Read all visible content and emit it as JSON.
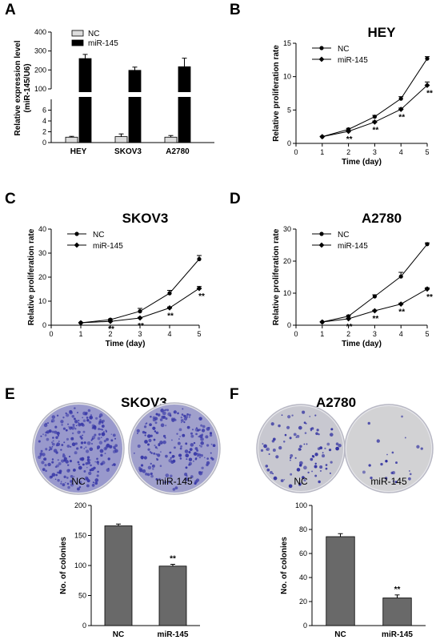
{
  "figure": {
    "panel_labels": [
      "A",
      "B",
      "C",
      "D",
      "E",
      "F"
    ]
  },
  "chart_data": [
    {
      "panel": "A",
      "type": "bar",
      "ylabel_lines": [
        "Relative expression level",
        "(miR-145/U6)"
      ],
      "ylim_lower": [
        0,
        8
      ],
      "ylim_upper": [
        100,
        400
      ],
      "yticks_lower": [
        0,
        2,
        4,
        6
      ],
      "yticks_upper": [
        100,
        200,
        300,
        400
      ],
      "categories": [
        "HEY",
        "SKOV3",
        "A2780"
      ],
      "series": [
        {
          "name": "NC",
          "color": "#dddddd",
          "values": [
            1,
            1.1,
            1
          ],
          "errors": [
            0.15,
            0.5,
            0.3
          ]
        },
        {
          "name": "miR-145",
          "color": "#000000",
          "values": [
            260,
            198,
            217
          ],
          "errors": [
            22,
            17,
            45
          ]
        }
      ],
      "legend": "top-left"
    },
    {
      "panel": "B",
      "type": "line",
      "title": "HEY",
      "xlabel": "Time (day)",
      "ylabel": "Relative proliferation rate",
      "xlim": [
        0,
        5
      ],
      "xticks": [
        0,
        1,
        2,
        3,
        4,
        5
      ],
      "ylim": [
        0,
        15
      ],
      "yticks": [
        0,
        5,
        10,
        15
      ],
      "series": [
        {
          "name": "NC",
          "marker": "circle",
          "values": [
            1,
            2.1,
            4.0,
            6.7,
            12.7
          ],
          "errors": [
            0.05,
            0.15,
            0.2,
            0.3,
            0.3
          ]
        },
        {
          "name": "miR-145",
          "marker": "diamond",
          "values": [
            1,
            1.8,
            3.2,
            5.1,
            8.7
          ],
          "errors": [
            0.05,
            0.1,
            0.15,
            0.2,
            0.5
          ]
        }
      ],
      "significance": [
        {
          "x": 2,
          "label": "**"
        },
        {
          "x": 3,
          "label": "**"
        },
        {
          "x": 4,
          "label": "**"
        },
        {
          "x": 5,
          "label": "**"
        }
      ],
      "legend": "top-left"
    },
    {
      "panel": "C",
      "type": "line",
      "title": "SKOV3",
      "xlabel": "Time (day)",
      "ylabel": "Relative proliferation rate",
      "xlim": [
        0,
        5
      ],
      "xticks": [
        0,
        1,
        2,
        3,
        4,
        5
      ],
      "ylim": [
        0,
        40
      ],
      "yticks": [
        0,
        10,
        20,
        30,
        40
      ],
      "series": [
        {
          "name": "NC",
          "marker": "circle",
          "values": [
            1,
            2.3,
            5.8,
            13.3,
            27.5
          ],
          "errors": [
            0.1,
            0.3,
            1.2,
            1.2,
            1.5
          ]
        },
        {
          "name": "miR-145",
          "marker": "diamond",
          "values": [
            1,
            1.6,
            3.0,
            7.2,
            15.3
          ],
          "errors": [
            0.1,
            0.2,
            0.3,
            0.4,
            0.8
          ]
        }
      ],
      "significance": [
        {
          "x": 2,
          "label": "**"
        },
        {
          "x": 3,
          "label": "**"
        },
        {
          "x": 4,
          "label": "**"
        },
        {
          "x": 5,
          "label": "**"
        }
      ],
      "legend": "top-left"
    },
    {
      "panel": "D",
      "type": "line",
      "title": "A2780",
      "xlabel": "Time (day)",
      "ylabel": "Relative proliferation rate",
      "xlim": [
        0,
        5
      ],
      "xticks": [
        0,
        1,
        2,
        3,
        4,
        5
      ],
      "ylim": [
        0,
        30
      ],
      "yticks": [
        0,
        10,
        20,
        30
      ],
      "series": [
        {
          "name": "NC",
          "marker": "circle",
          "values": [
            1,
            2.8,
            9.0,
            15.2,
            25.3
          ],
          "errors": [
            0.1,
            0.3,
            0.5,
            1.3,
            0.4
          ]
        },
        {
          "name": "miR-145",
          "marker": "diamond",
          "values": [
            1,
            2.0,
            4.5,
            6.6,
            11.3
          ],
          "errors": [
            0.1,
            0.2,
            0.2,
            0.3,
            0.4
          ]
        }
      ],
      "significance": [
        {
          "x": 2,
          "label": "**"
        },
        {
          "x": 3,
          "label": "**"
        },
        {
          "x": 4,
          "label": "**"
        },
        {
          "x": 5,
          "label": "**"
        }
      ],
      "legend": "top-left"
    },
    {
      "panel": "E",
      "type": "bar",
      "title": "SKOV3",
      "ylabel": "No. of colonies",
      "ylim": [
        0,
        200
      ],
      "yticks": [
        0,
        50,
        100,
        150,
        200
      ],
      "categories": [
        "NC",
        "miR-145"
      ],
      "values": [
        166,
        99
      ],
      "errors": [
        3,
        3
      ],
      "significance": [
        {
          "category": "miR-145",
          "label": "**"
        }
      ],
      "bar_color": "#696969"
    },
    {
      "panel": "F",
      "type": "bar",
      "title": "A2780",
      "ylabel": "No. of colonies",
      "ylim": [
        0,
        100
      ],
      "yticks": [
        0,
        20,
        40,
        60,
        80,
        100
      ],
      "categories": [
        "NC",
        "miR-145"
      ],
      "values": [
        74,
        23
      ],
      "errors": [
        2.5,
        2.5
      ],
      "significance": [
        {
          "category": "miR-145",
          "label": "**"
        }
      ],
      "bar_color": "#696969"
    }
  ],
  "plate_images": [
    {
      "panel": "E",
      "labels": [
        "NC",
        "miR-145"
      ],
      "plate_colors": [
        "#9999cc",
        "#a0a0cc"
      ],
      "stain_color": "#3a3aa8",
      "colony_density": [
        "high",
        "high"
      ]
    },
    {
      "panel": "F",
      "labels": [
        "NC",
        "miR-145"
      ],
      "plate_colors": [
        "#c8c8d0",
        "#d2d2d4"
      ],
      "stain_color": "#2f2fa0",
      "colony_density": [
        "medium",
        "low"
      ]
    }
  ]
}
